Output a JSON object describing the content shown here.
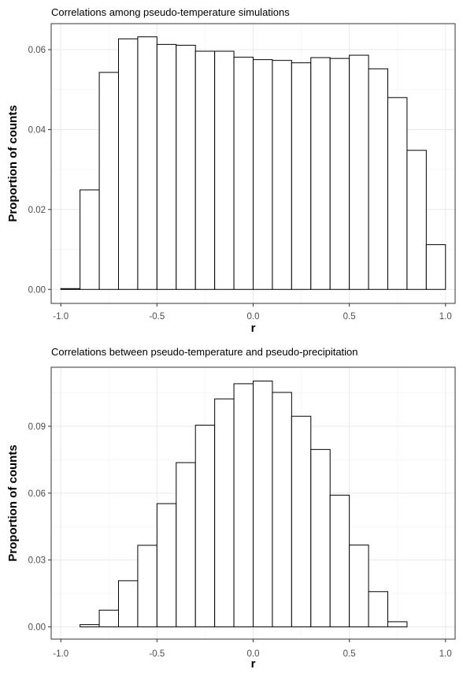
{
  "chart_data": [
    {
      "type": "bar",
      "title": "Correlations among pseudo-temperature simulations",
      "xlabel": "r",
      "ylabel": "Proportion of counts",
      "xlim": [
        -1.05,
        1.05
      ],
      "ylim": [
        -0.0035,
        0.0665
      ],
      "x_ticks": [
        -1.0,
        -0.5,
        0.0,
        0.5,
        1.0
      ],
      "x_tick_labels": [
        "-1.0",
        "-0.5",
        "0.0",
        "0.5",
        "1.0"
      ],
      "y_ticks": [
        0.0,
        0.02,
        0.04,
        0.06
      ],
      "y_tick_labels": [
        "0.00",
        "0.02",
        "0.04",
        "0.06"
      ],
      "grid": true,
      "bin_width": 0.1,
      "bin_starts": [
        -1.0,
        -0.9,
        -0.8,
        -0.7,
        -0.6,
        -0.5,
        -0.4,
        -0.3,
        -0.2,
        -0.1,
        0.0,
        0.1,
        0.2,
        0.3,
        0.4,
        0.5,
        0.6,
        0.7,
        0.8,
        0.9
      ],
      "values": [
        0.0002,
        0.0249,
        0.0543,
        0.0627,
        0.0632,
        0.0613,
        0.0611,
        0.0596,
        0.0596,
        0.0581,
        0.0575,
        0.0573,
        0.0567,
        0.058,
        0.0578,
        0.0586,
        0.0552,
        0.048,
        0.0348,
        0.0112
      ]
    },
    {
      "type": "bar",
      "title": "Correlations between pseudo-temperature and pseudo-precipitation",
      "xlabel": "r",
      "ylabel": "Proportion of counts",
      "xlim": [
        -1.05,
        1.05
      ],
      "ylim": [
        -0.0055,
        0.1165
      ],
      "x_ticks": [
        -1.0,
        -0.5,
        0.0,
        0.5,
        1.0
      ],
      "x_tick_labels": [
        "-1.0",
        "-0.5",
        "0.0",
        "0.5",
        "1.0"
      ],
      "y_ticks": [
        0.0,
        0.03,
        0.06,
        0.09
      ],
      "y_tick_labels": [
        "0.00",
        "0.03",
        "0.06",
        "0.09"
      ],
      "grid": true,
      "bin_width": 0.1,
      "bin_starts": [
        -1.0,
        -0.9,
        -0.8,
        -0.7,
        -0.6,
        -0.5,
        -0.4,
        -0.3,
        -0.2,
        -0.1,
        0.0,
        0.1,
        0.2,
        0.3,
        0.4,
        0.5,
        0.6,
        0.7,
        0.8,
        0.9
      ],
      "values": [
        0.0,
        0.001,
        0.0075,
        0.0207,
        0.0366,
        0.0553,
        0.0737,
        0.0905,
        0.1023,
        0.1091,
        0.1103,
        0.1052,
        0.0945,
        0.0796,
        0.0591,
        0.0367,
        0.0158,
        0.0023,
        0.0,
        0.0
      ]
    }
  ]
}
